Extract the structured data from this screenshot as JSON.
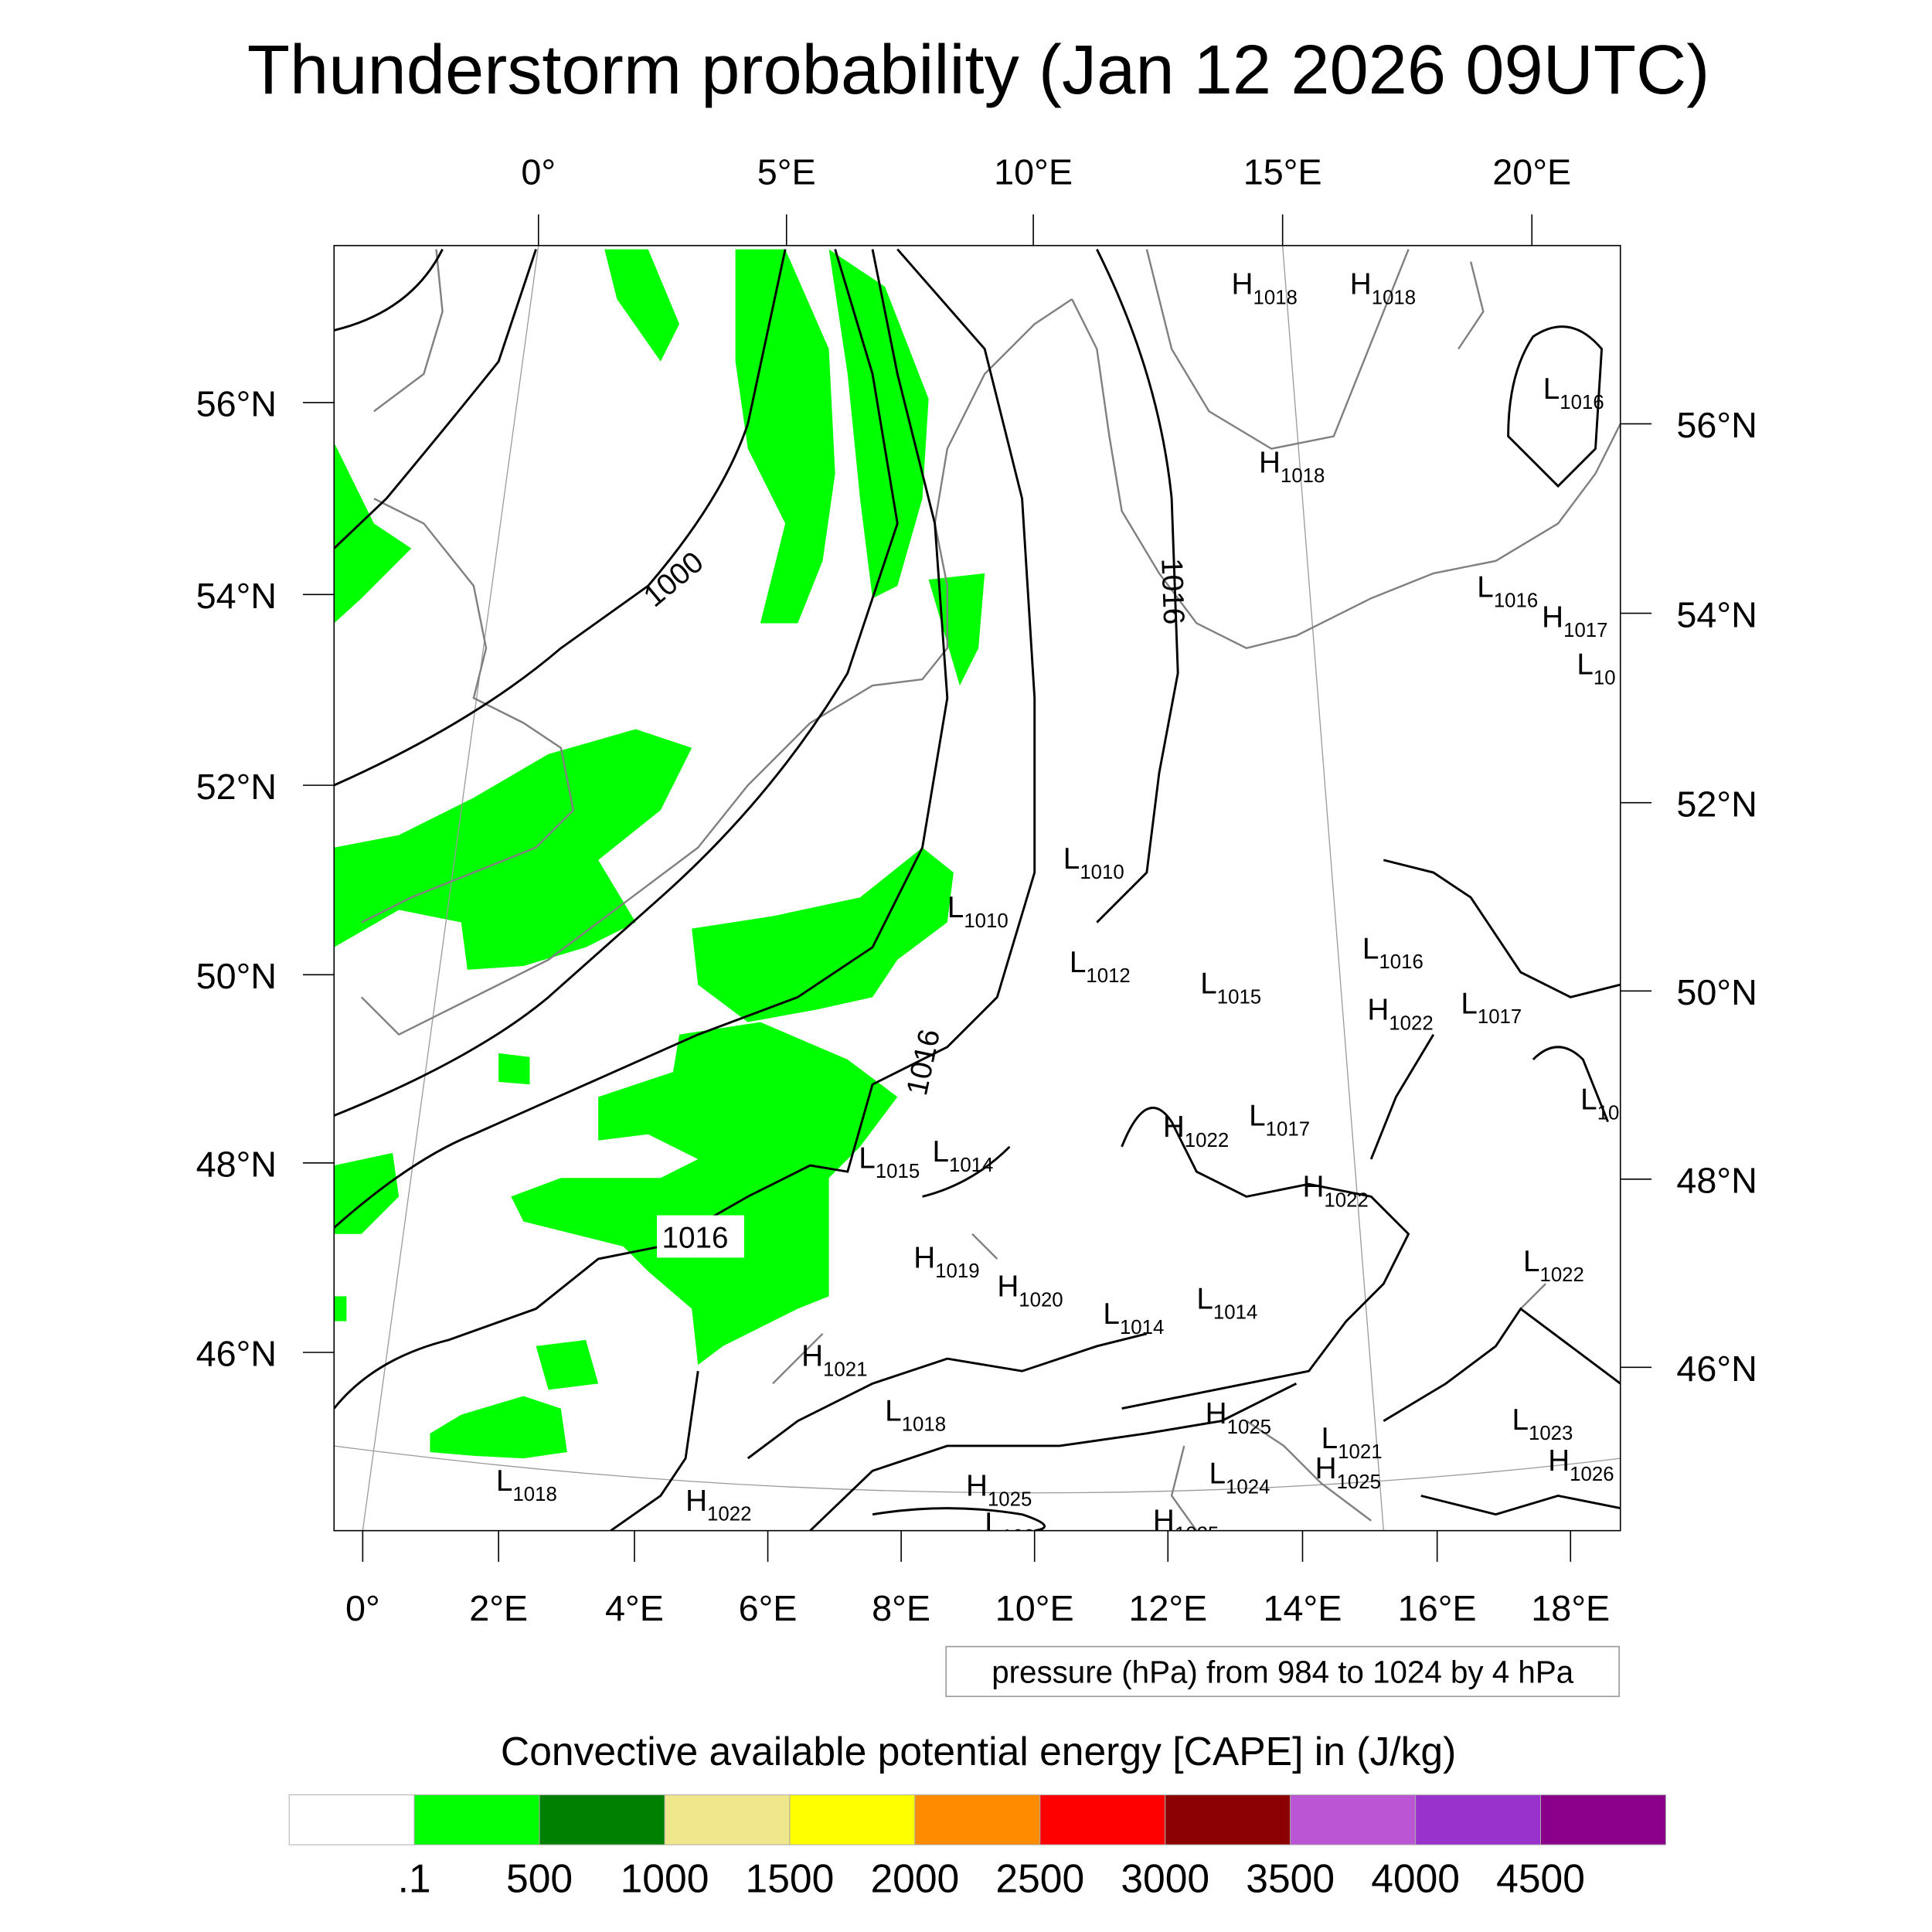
{
  "title": "Thunderstorm probability (Jan 12 2026 09UTC)",
  "top_lon_labels": [
    "0°",
    "5°E",
    "10°E",
    "15°E",
    "20°E"
  ],
  "left_lat_labels": [
    "56°N",
    "54°N",
    "52°N",
    "50°N",
    "48°N",
    "46°N"
  ],
  "right_lat_labels": [
    "56°N",
    "54°N",
    "52°N",
    "50°N",
    "48°N",
    "46°N"
  ],
  "bottom_lon_labels": [
    "0°",
    "2°E",
    "4°E",
    "6°E",
    "8°E",
    "10°E",
    "12°E",
    "14°E",
    "16°E",
    "18°E"
  ],
  "contour_labels": [
    "1000",
    "1016",
    "1016",
    "1016"
  ],
  "pressure_centers": [
    {
      "t": "H",
      "v": "1018"
    },
    {
      "t": "H",
      "v": "1018"
    },
    {
      "t": "L",
      "v": "1016"
    },
    {
      "t": "H",
      "v": "1018"
    },
    {
      "t": "L",
      "v": "1016"
    },
    {
      "t": "H",
      "v": "1017"
    },
    {
      "t": "L",
      "v": "10"
    },
    {
      "t": "L",
      "v": "1010"
    },
    {
      "t": "L",
      "v": "1010"
    },
    {
      "t": "L",
      "v": "1012"
    },
    {
      "t": "L",
      "v": "1015"
    },
    {
      "t": "L",
      "v": "1016"
    },
    {
      "t": "H",
      "v": "1022"
    },
    {
      "t": "L",
      "v": "1017"
    },
    {
      "t": "L",
      "v": "10"
    },
    {
      "t": "H",
      "v": "1022"
    },
    {
      "t": "L",
      "v": "1017"
    },
    {
      "t": "L",
      "v": "1015"
    },
    {
      "t": "L",
      "v": "1014"
    },
    {
      "t": "H",
      "v": "1022"
    },
    {
      "t": "H",
      "v": "1019"
    },
    {
      "t": "H",
      "v": "1020"
    },
    {
      "t": "L",
      "v": "1014"
    },
    {
      "t": "L",
      "v": "1014"
    },
    {
      "t": "L",
      "v": "1022"
    },
    {
      "t": "H",
      "v": "1021"
    },
    {
      "t": "L",
      "v": "1018"
    },
    {
      "t": "H",
      "v": "1025"
    },
    {
      "t": "L",
      "v": "1021"
    },
    {
      "t": "L",
      "v": "1023"
    },
    {
      "t": "H",
      "v": "1026"
    },
    {
      "t": "L",
      "v": "1024"
    },
    {
      "t": "H",
      "v": "1025"
    },
    {
      "t": "L",
      "v": "1018"
    },
    {
      "t": "H",
      "v": "1022"
    },
    {
      "t": "H",
      "v": "1025"
    },
    {
      "t": "L",
      "v": "1023"
    },
    {
      "t": "H",
      "v": "1025"
    }
  ],
  "info_box": "pressure (hPa) from 984 to 1024 by 4 hPa",
  "colorbar": {
    "title": "Convective available potential energy [CAPE] in (J/kg)",
    "colors": [
      "#ffffff",
      "#00ff00",
      "#008000",
      "#f0e68c",
      "#ffff00",
      "#ff8c00",
      "#ff0000",
      "#8b0000",
      "#ba55d3",
      "#9932cc",
      "#8b008b"
    ],
    "labels": [
      ".1",
      "500",
      "1000",
      "1500",
      "2000",
      "2500",
      "3000",
      "3500",
      "4000",
      "4500"
    ]
  }
}
